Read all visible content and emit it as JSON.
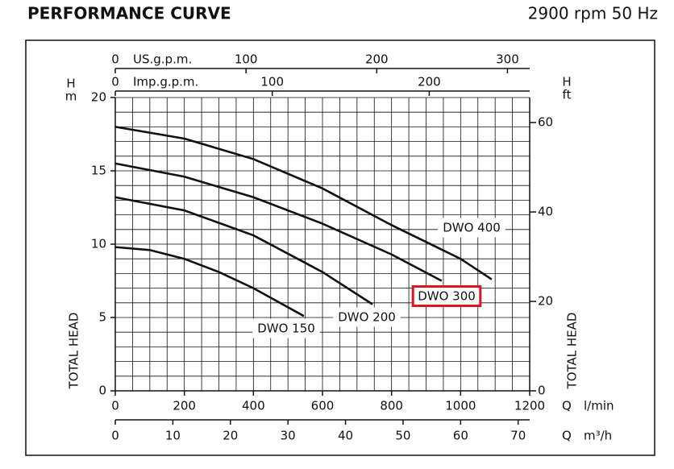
{
  "chart_data": {
    "type": "line",
    "title": "PERFORMANCE CURVE",
    "subtitle": "2900 rpm 50 Hz",
    "xlabel": "Q",
    "xunit": "l/min",
    "xlim": [
      0,
      1200
    ],
    "xticks": [
      0,
      200,
      400,
      600,
      800,
      1000,
      1200
    ],
    "ylabel": "TOTAL HEAD",
    "yunit_lines": [
      "H",
      "m"
    ],
    "ylim": [
      0,
      20
    ],
    "yticks": [
      0,
      5,
      10,
      15,
      20
    ],
    "y2label": "TOTAL HEAD",
    "y2unit_lines": [
      "H",
      "ft"
    ],
    "y2lim": [
      0,
      65.6
    ],
    "y2ticks": [
      0,
      20,
      40,
      60
    ],
    "grid": true,
    "line_color": "#111111",
    "highlight_color": "#e0141e",
    "secondary_x_axes": [
      {
        "position": "bottom",
        "label": "Q",
        "unit": "m³/h",
        "lim": [
          0,
          72
        ],
        "ticks": [
          0,
          10,
          20,
          30,
          40,
          50,
          60,
          70
        ]
      },
      {
        "position": "top",
        "unit": "US.g.p.m.",
        "lim": [
          0,
          317
        ],
        "ticks": [
          0,
          100,
          200,
          300
        ]
      },
      {
        "position": "top",
        "unit": "Imp.g.p.m.",
        "lim": [
          0,
          264
        ],
        "ticks": [
          0,
          100,
          200
        ]
      }
    ],
    "series": [
      {
        "name": "DWO 150",
        "highlight": false,
        "x": [
          0,
          100,
          200,
          300,
          400,
          546
        ],
        "values": [
          9.8,
          9.6,
          9.0,
          8.1,
          7.0,
          5.1
        ]
      },
      {
        "name": "DWO 200",
        "highlight": false,
        "x": [
          0,
          200,
          400,
          600,
          745
        ],
        "values": [
          13.2,
          12.3,
          10.6,
          8.1,
          5.9
        ]
      },
      {
        "name": "DWO 300",
        "highlight": true,
        "x": [
          0,
          200,
          400,
          600,
          800,
          945
        ],
        "values": [
          15.5,
          14.6,
          13.2,
          11.4,
          9.3,
          7.5
        ]
      },
      {
        "name": "DWO 400",
        "highlight": false,
        "x": [
          0,
          200,
          400,
          600,
          800,
          1000,
          1090
        ],
        "values": [
          18.0,
          17.2,
          15.8,
          13.8,
          11.3,
          9.0,
          7.6
        ]
      }
    ]
  }
}
